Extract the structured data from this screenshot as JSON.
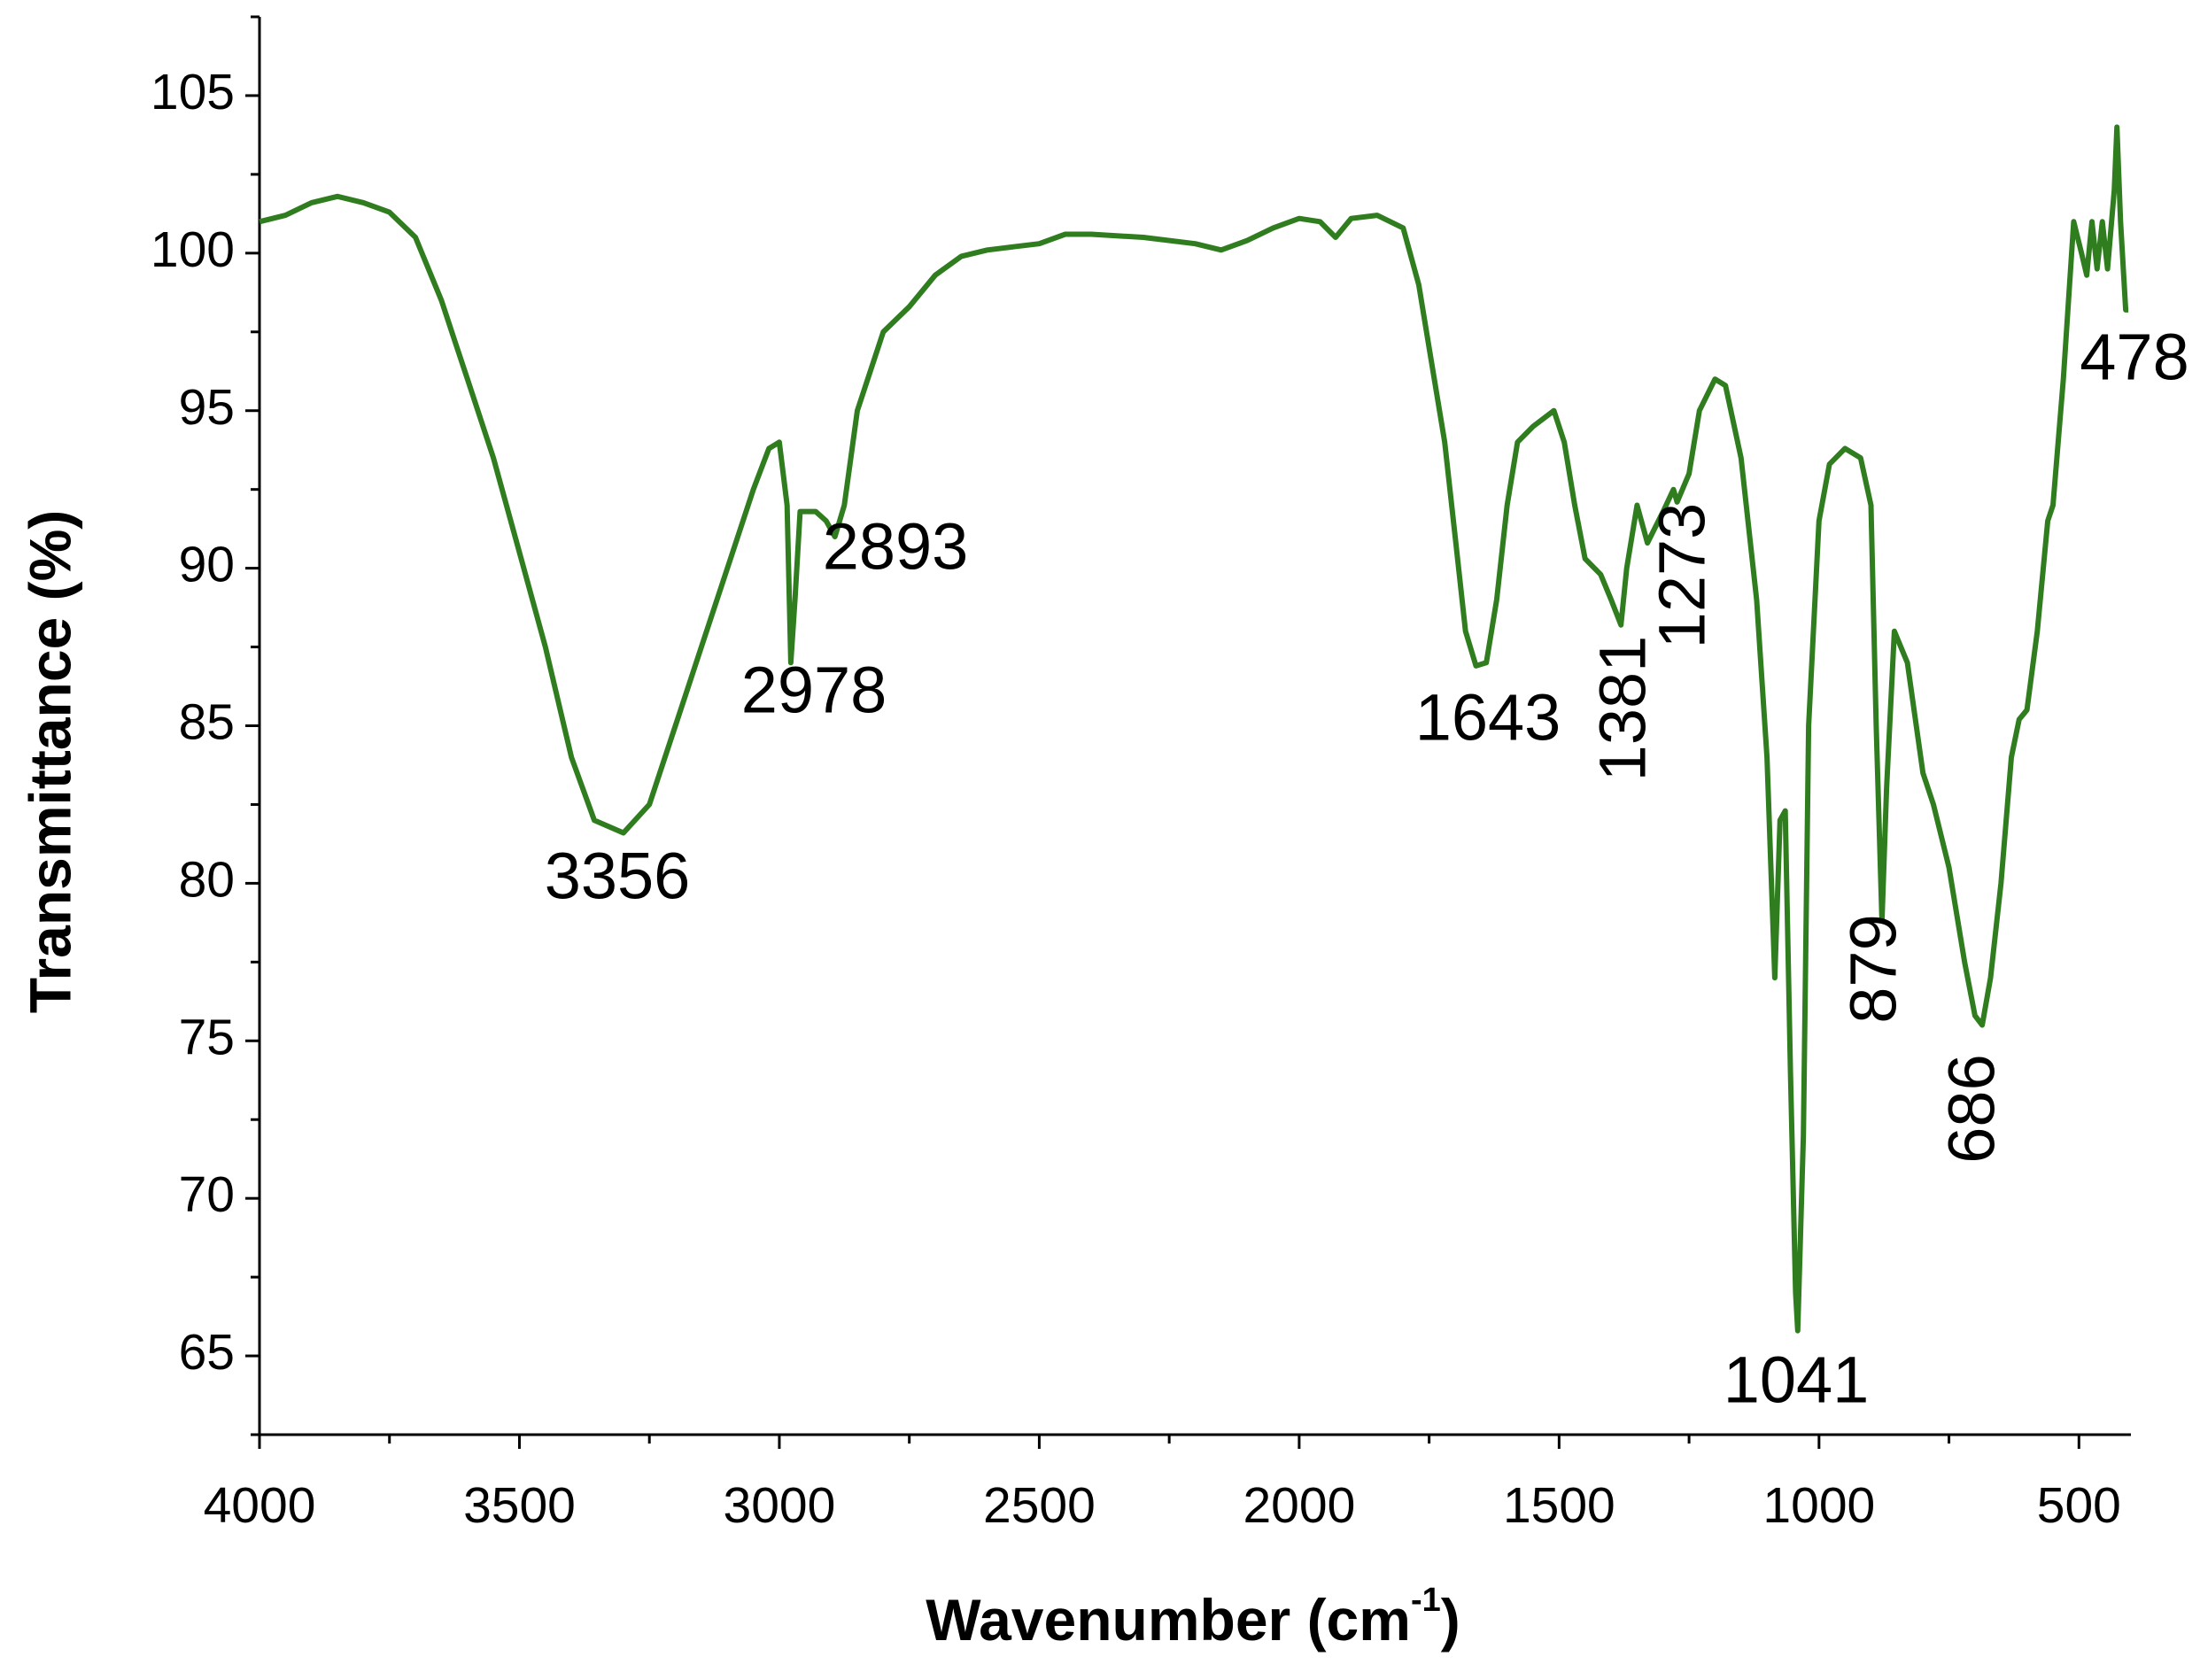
{
  "chart_data": {
    "type": "line",
    "y_label": "Transmittance (%)",
    "x_label": "Wavenumber (cm",
    "x_label_sup": "-1",
    "x_label_end": ")",
    "x": [
      4000,
      3950,
      3900,
      3850,
      3800,
      3750,
      3700,
      3650,
      3620,
      3600,
      3550,
      3500,
      3450,
      3400,
      3356,
      3300,
      3250,
      3200,
      3150,
      3100,
      3050,
      3020,
      3000,
      2985,
      2978,
      2970,
      2960,
      2930,
      2910,
      2893,
      2875,
      2850,
      2800,
      2750,
      2700,
      2650,
      2600,
      2550,
      2500,
      2450,
      2400,
      2300,
      2200,
      2150,
      2100,
      2050,
      2000,
      1960,
      1930,
      1900,
      1850,
      1800,
      1770,
      1750,
      1720,
      1700,
      1680,
      1660,
      1640,
      1620,
      1600,
      1580,
      1550,
      1510,
      1490,
      1470,
      1450,
      1420,
      1400,
      1381,
      1370,
      1350,
      1330,
      1300,
      1280,
      1273,
      1250,
      1230,
      1200,
      1180,
      1150,
      1120,
      1100,
      1085,
      1075,
      1065,
      1055,
      1045,
      1041,
      1030,
      1020,
      1000,
      980,
      950,
      920,
      900,
      890,
      879,
      870,
      855,
      830,
      800,
      780,
      750,
      720,
      700,
      686,
      670,
      650,
      630,
      615,
      600,
      580,
      560,
      550,
      530,
      510,
      495,
      485,
      475,
      465,
      455,
      445,
      432,
      427,
      420,
      410,
      405
    ],
    "series": [
      {
        "color": "#2f7d1f",
        "values": [
          101.0,
          101.2,
          101.6,
          101.8,
          101.6,
          101.3,
          100.5,
          98.5,
          97,
          96,
          93.5,
          90.5,
          87.5,
          84,
          82,
          81.6,
          82.5,
          85,
          87.5,
          90,
          92.5,
          93.8,
          94,
          92,
          87,
          89,
          91.8,
          91.8,
          91.5,
          91.0,
          92,
          95,
          97.5,
          98.3,
          99.3,
          99.9,
          100.1,
          100.2,
          100.3,
          100.6,
          100.6,
          100.5,
          100.3,
          100.1,
          100.4,
          100.8,
          101.1,
          101.0,
          100.5,
          101.1,
          101.2,
          100.8,
          99,
          97,
          94,
          91,
          88,
          86.9,
          87,
          89,
          92,
          94,
          94.5,
          95,
          94,
          92,
          90.3,
          89.8,
          89,
          88.2,
          90,
          92,
          90.8,
          91.8,
          92.5,
          92.1,
          93,
          95,
          96,
          95.8,
          93.5,
          89,
          84,
          77,
          82,
          82.3,
          74,
          67,
          65.8,
          72,
          85,
          91.5,
          93.3,
          93.8,
          93.5,
          92,
          85,
          78.8,
          83,
          88,
          87,
          83.5,
          82.5,
          80.5,
          77.5,
          75.8,
          75.5,
          77,
          80,
          84,
          85.2,
          85.5,
          88,
          91.5,
          92,
          96,
          101,
          100,
          99.3,
          101,
          99.5,
          101,
          99.5,
          102,
          104,
          101,
          98.2,
          98.2
        ]
      }
    ],
    "xlim": [
      4000,
      400
    ],
    "xticks": [
      4000,
      3500,
      3000,
      2500,
      2000,
      1500,
      1000,
      500
    ],
    "ylim": [
      62.5,
      107.5
    ],
    "yticks": [
      65,
      70,
      75,
      80,
      85,
      90,
      95,
      100,
      105
    ],
    "annotations": [
      {
        "text": "3356",
        "rotated": false
      },
      {
        "text": "2978",
        "rotated": false
      },
      {
        "text": "2893",
        "rotated": false
      },
      {
        "text": "1643",
        "rotated": false
      },
      {
        "text": "1381",
        "rotated": true
      },
      {
        "text": "1273",
        "rotated": true
      },
      {
        "text": "1041",
        "rotated": false
      },
      {
        "text": "879",
        "rotated": true
      },
      {
        "text": "686",
        "rotated": true
      },
      {
        "text": "478",
        "rotated": false
      }
    ]
  }
}
